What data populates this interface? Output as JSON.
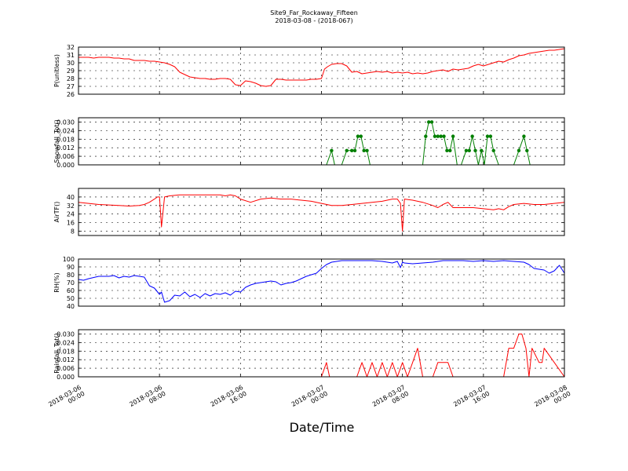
{
  "figure": {
    "title_line1": "Site9_Far_Rockaway_Fifteen",
    "title_line2": "2018-03-08 - (2018-067)",
    "xlabel": "Date/Time",
    "x_ticks": [
      {
        "l1": "2018-03-06",
        "l2": "00:00"
      },
      {
        "l1": "2018-03-06",
        "l2": "08:00"
      },
      {
        "l1": "2018-03-06",
        "l2": "16:00"
      },
      {
        "l1": "2018-03-07",
        "l2": "00:00"
      },
      {
        "l1": "2018-03-07",
        "l2": "08:00"
      },
      {
        "l1": "2018-03-07",
        "l2": "16:00"
      },
      {
        "l1": "2018-03-08",
        "l2": "00:00"
      }
    ]
  },
  "chart_data": [
    {
      "type": "line",
      "ylabel": "P(unitless)",
      "ylim": [
        26,
        32
      ],
      "yticks": [
        "26",
        "27",
        "28",
        "29",
        "30",
        "31",
        "32"
      ],
      "color": "#ff0000",
      "x": [
        0,
        0.5,
        1,
        1.5,
        2,
        2.5,
        3,
        3.5,
        4,
        4.5,
        5,
        5.5,
        6,
        6.5,
        7,
        7.5,
        8,
        8.5,
        9,
        9.5,
        10,
        10.5,
        11,
        11.5,
        12,
        12.5,
        13,
        13.5,
        14,
        14.5,
        15,
        15.5,
        16,
        16.5,
        17,
        17.5,
        18,
        18.5,
        19,
        19.5,
        20,
        20.5,
        21,
        21.5,
        22,
        22.5,
        23,
        23.5,
        24,
        24.3,
        24.6,
        25,
        25.5,
        26,
        26.5,
        27,
        27.5,
        28,
        28.5,
        29,
        29.5,
        30,
        30.5,
        31,
        31.5,
        32,
        32.5,
        33,
        33.5,
        34,
        34.5,
        35,
        35.5,
        36,
        36.5,
        37,
        37.5,
        38,
        38.5,
        39,
        39.5,
        40,
        40.5,
        41,
        41.5,
        42,
        42.5,
        43,
        43.5,
        44,
        44.5,
        45,
        45.5,
        46,
        46.5,
        47,
        47.5,
        48
      ],
      "y": [
        30.7,
        30.7,
        30.7,
        30.6,
        30.7,
        30.7,
        30.7,
        30.6,
        30.6,
        30.5,
        30.5,
        30.3,
        30.3,
        30.3,
        30.2,
        30.2,
        30.1,
        30.0,
        29.8,
        29.5,
        28.8,
        28.5,
        28.2,
        28.1,
        28.0,
        28.0,
        27.9,
        27.9,
        28.0,
        28.0,
        27.9,
        27.2,
        27.1,
        27.7,
        27.6,
        27.4,
        27.1,
        27.0,
        27.1,
        27.9,
        27.9,
        27.8,
        27.8,
        27.8,
        27.8,
        27.8,
        27.9,
        27.9,
        28.0,
        29.2,
        29.5,
        29.8,
        29.9,
        29.9,
        29.6,
        28.8,
        28.9,
        28.6,
        28.7,
        28.8,
        28.9,
        28.8,
        28.9,
        28.7,
        28.8,
        28.7,
        28.8,
        28.6,
        28.7,
        28.6,
        28.7,
        28.9,
        29.0,
        29.1,
        28.9,
        29.2,
        29.1,
        29.2,
        29.3,
        29.6,
        29.8,
        29.6,
        29.8,
        30.0,
        30.2,
        30.1,
        30.4,
        30.6,
        30.9,
        31.0,
        31.2,
        31.3,
        31.4,
        31.5,
        31.6,
        31.6,
        31.7,
        31.8
      ]
    },
    {
      "type": "line",
      "ylabel": "Snowfall_Tot()",
      "ylim": [
        0,
        0.033
      ],
      "yticks": [
        "0.000",
        "0.006",
        "0.012",
        "0.018",
        "0.024",
        "0.030"
      ],
      "color": "#007f00",
      "markers": true,
      "x": [
        0,
        24,
        24.5,
        25,
        25.3,
        26,
        26.5,
        27,
        27.3,
        27.6,
        27.9,
        28.2,
        28.5,
        28.8,
        29.1,
        34,
        34.3,
        34.6,
        34.9,
        35.2,
        35.5,
        35.8,
        36.1,
        36.4,
        36.7,
        37,
        37.4,
        37.8,
        38.3,
        38.6,
        38.9,
        39.2,
        39.5,
        39.8,
        40.1,
        40.4,
        40.7,
        41,
        41.5,
        42,
        43,
        43.5,
        44,
        44.3,
        44.6,
        45,
        48
      ],
      "y": [
        0,
        0,
        0,
        0.01,
        0,
        0,
        0.01,
        0.01,
        0.01,
        0.02,
        0.02,
        0.01,
        0.01,
        0,
        0,
        0,
        0.02,
        0.03,
        0.03,
        0.02,
        0.02,
        0.02,
        0.02,
        0.01,
        0.01,
        0.02,
        0,
        0,
        0.01,
        0.01,
        0.02,
        0.01,
        0,
        0.01,
        0,
        0.02,
        0.02,
        0.01,
        0,
        0,
        0,
        0.01,
        0.02,
        0.01,
        0,
        0,
        0
      ]
    },
    {
      "type": "line",
      "ylabel": "AirTF()",
      "ylim": [
        4,
        48
      ],
      "yticks": [
        "8",
        "16",
        "24",
        "32",
        "40"
      ],
      "color": "#ff0000",
      "x": [
        0,
        1,
        2,
        3,
        4,
        5,
        6,
        6.5,
        7,
        7.5,
        7.8,
        8,
        8.2,
        8.5,
        9,
        10,
        11,
        12,
        13,
        14,
        14.5,
        15,
        15.5,
        16,
        17,
        18,
        19,
        20,
        21,
        22,
        23,
        24,
        25,
        26,
        27,
        28,
        29,
        30,
        30.5,
        31,
        31.5,
        31.8,
        32,
        32.2,
        33,
        34,
        35,
        35.5,
        36,
        36.5,
        37,
        38,
        39,
        40,
        41,
        41.5,
        42,
        42.5,
        43,
        44,
        45,
        46,
        47,
        48
      ],
      "y": [
        35,
        34,
        33,
        32.5,
        32,
        31.5,
        32,
        33,
        35,
        38,
        40,
        40,
        12,
        40,
        41,
        42,
        42,
        42,
        42,
        42,
        41,
        42,
        41,
        38,
        35,
        38,
        39,
        38,
        38,
        37,
        36,
        34,
        32,
        32,
        33,
        34,
        35,
        36,
        37,
        38,
        38,
        34,
        8,
        38,
        37,
        35,
        32,
        30,
        33,
        35,
        30,
        30,
        30,
        29,
        28,
        29,
        28,
        31,
        33,
        34,
        33,
        33,
        34,
        35
      ]
    },
    {
      "type": "line",
      "ylabel": "RH(%)",
      "ylim": [
        40,
        100
      ],
      "yticks": [
        "40",
        "50",
        "60",
        "70",
        "80",
        "90",
        "100"
      ],
      "color": "#0000ff",
      "x": [
        0,
        0.5,
        1,
        2,
        3,
        3.5,
        4,
        4.5,
        5,
        5.5,
        6,
        6.5,
        7,
        7.5,
        8,
        8.2,
        8.5,
        9,
        9.5,
        10,
        10.5,
        11,
        11.5,
        12,
        12.5,
        13,
        13.5,
        14,
        14.5,
        15,
        15.5,
        16,
        16.5,
        17,
        17.5,
        18,
        18.5,
        19,
        19.5,
        20,
        20.5,
        21,
        21.5,
        22,
        22.5,
        23,
        23.5,
        24,
        24.5,
        25,
        26,
        27,
        28,
        29,
        30,
        30.5,
        31,
        31.5,
        31.8,
        32,
        32.2,
        33,
        34,
        35,
        36,
        37,
        38,
        39,
        40,
        41,
        42,
        43,
        44,
        44.5,
        45,
        45.5,
        46,
        46.5,
        47,
        47.5,
        48
      ],
      "y": [
        74,
        73,
        75,
        78,
        78,
        79,
        76,
        78,
        77,
        79,
        78,
        77,
        66,
        63,
        55,
        58,
        45,
        47,
        54,
        53,
        58,
        52,
        55,
        51,
        56,
        53,
        56,
        55,
        57,
        54,
        59,
        58,
        64,
        67,
        69,
        70,
        71,
        72,
        71,
        67,
        69,
        70,
        72,
        75,
        78,
        80,
        82,
        88,
        93,
        96,
        98,
        98,
        98,
        98,
        97,
        96,
        95,
        97,
        89,
        96,
        95,
        94,
        95,
        96,
        98,
        98,
        98,
        97,
        98,
        97,
        98,
        97,
        96,
        93,
        88,
        87,
        86,
        82,
        85,
        92,
        82
      ]
    },
    {
      "type": "line",
      "ylabel": "Rainfall_Tot()",
      "ylim": [
        0,
        0.033
      ],
      "yticks": [
        "0.000",
        "0.006",
        "0.012",
        "0.018",
        "0.024",
        "0.030"
      ],
      "color": "#ff0000",
      "x": [
        0,
        24,
        24.5,
        24.8,
        27.5,
        28,
        28.5,
        29,
        29.5,
        30,
        30.5,
        31,
        31.5,
        32,
        32.5,
        33,
        33.5,
        34,
        35,
        35.5,
        36,
        36.5,
        37,
        42,
        42.5,
        43,
        43.5,
        43.8,
        44.2,
        44.5,
        44.8,
        45.5,
        45.8,
        46,
        48
      ],
      "y": [
        0,
        0,
        0.01,
        0,
        0,
        0.01,
        0,
        0.01,
        0,
        0.01,
        0,
        0.01,
        0,
        0.01,
        0,
        0.01,
        0.02,
        0,
        0,
        0.01,
        0.01,
        0.01,
        0,
        0,
        0.02,
        0.02,
        0.03,
        0.03,
        0.02,
        0,
        0.02,
        0.01,
        0.01,
        0.02,
        0
      ]
    }
  ]
}
